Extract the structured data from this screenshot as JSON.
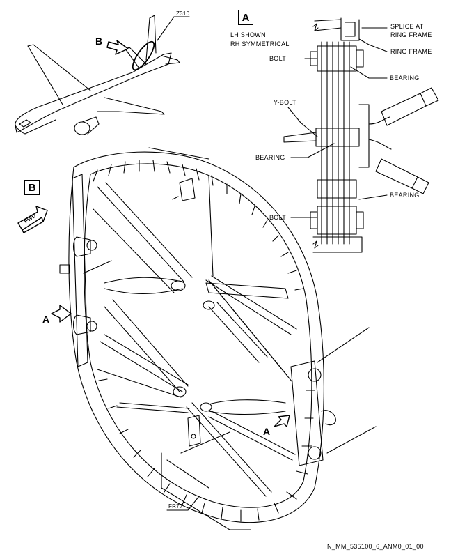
{
  "labels": {
    "zone": "Z310",
    "view_b_callout": "B",
    "view_a_box": "A",
    "view_b_box": "B",
    "lh_shown": "LH SHOWN",
    "rh_symmetrical": "RH SYMMETRICAL",
    "splice_at": "SPLICE AT",
    "ring_frame_1": "RING FRAME",
    "ring_frame_2": "RING FRAME",
    "bolt_top": "BOLT",
    "bearing_top": "BEARING",
    "y_bolt": "Y-BOLT",
    "bearing_mid": "BEARING",
    "bearing_low": "BEARING",
    "bolt_low": "BOLT",
    "fwd": "FWD",
    "callout_a_left": "A",
    "callout_a_right": "A",
    "frame": "FR77",
    "drawing_id": "N_MM_535100_6_ANM0_01_00"
  }
}
